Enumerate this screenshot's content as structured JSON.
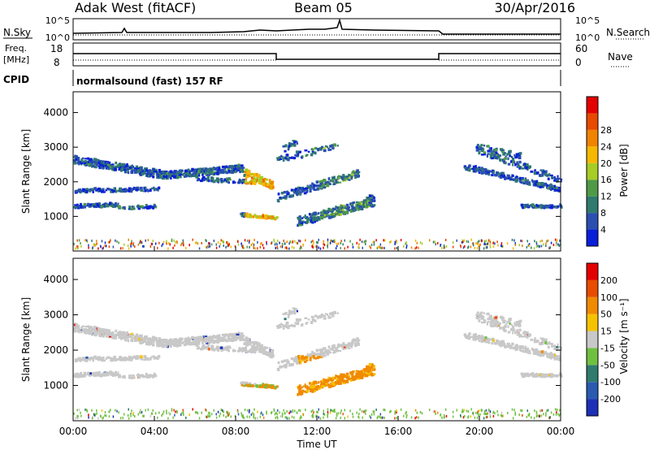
{
  "header": {
    "site": "Adak West (fitACF)",
    "beam": "Beam 05",
    "date": "30/Apr/2016"
  },
  "top_panels": {
    "nsky_label": "N.Sky",
    "nsky_ticks": [
      "10^5",
      "10^0"
    ],
    "nsearch_label": "N.Search",
    "nsearch_ticks": [
      "10^5",
      "10^0"
    ],
    "freq_label": "Freq.",
    "freq_unit": "[MHz]",
    "freq_ticks": [
      "18",
      "8"
    ],
    "nave_label": "Nave",
    "nave_ticks": [
      "60",
      "0"
    ],
    "cpid_label": "CPID",
    "cpid_text": "normalsound (fast) 157 RF"
  },
  "chart_data": [
    {
      "type": "heatmap",
      "name": "power",
      "ylabel": "Slant Range [km]",
      "ylim": [
        0,
        4600
      ],
      "yticks": [
        "1000",
        "2000",
        "3000",
        "4000"
      ],
      "colorbar": {
        "label": "Power [dB]",
        "ticks": [
          "4",
          "8",
          "12",
          "16",
          "20",
          "24",
          "28"
        ],
        "colors": [
          "#0a1fd8",
          "#2a4fb0",
          "#2f7a6e",
          "#4f9a46",
          "#a7cc25",
          "#f6b800",
          "#f08400",
          "#e84a00",
          "#e40000"
        ]
      }
    },
    {
      "type": "heatmap",
      "name": "velocity",
      "ylabel": "Slant Range [km]",
      "ylim": [
        0,
        4600
      ],
      "yticks": [
        "1000",
        "2000",
        "3000",
        "4000"
      ],
      "colorbar": {
        "label": "Velocity [m s⁻¹]",
        "ticks": [
          "200",
          "100",
          "50",
          "15",
          "-15",
          "-50",
          "-100",
          "-200"
        ],
        "colors": [
          "#1d2fb7",
          "#2a5bb1",
          "#2f7b6e",
          "#70c040",
          "#c8c8c8",
          "#f6c200",
          "#f08a00",
          "#e84c00",
          "#e40000"
        ]
      },
      "xlabel": "Time UT",
      "xticks": [
        "00:00",
        "04:00",
        "08:00",
        "12:00",
        "16:00",
        "20:00",
        "00:00"
      ]
    }
  ]
}
